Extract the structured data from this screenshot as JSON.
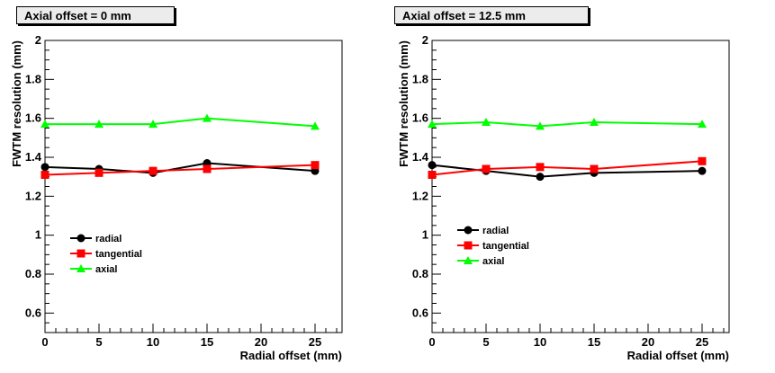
{
  "chart_data": [
    {
      "type": "line",
      "title": "Axial offset = 0 mm",
      "xlabel": "Radial offset (mm)",
      "ylabel": "FWTM resolution (mm)",
      "xlim": [
        0,
        27.5
      ],
      "ylim": [
        0.5,
        2.0
      ],
      "xticks": [
        0,
        5,
        10,
        15,
        20,
        25
      ],
      "xtick_labels": [
        "0",
        "5",
        "10",
        "15",
        "20",
        "25"
      ],
      "yticks": [
        0.6,
        0.8,
        1.0,
        1.2,
        1.4,
        1.6,
        1.8,
        2.0
      ],
      "ytick_labels": [
        "0.6",
        "0.8",
        "1",
        "1.2",
        "1.4",
        "1.6",
        "1.8",
        "2"
      ],
      "grid": false,
      "legend_position": "lower-left",
      "x": [
        0,
        5,
        10,
        15,
        25
      ],
      "series": [
        {
          "name": "radial",
          "color": "#000000",
          "marker": "circle",
          "values": [
            1.35,
            1.34,
            1.32,
            1.37,
            1.33
          ]
        },
        {
          "name": "tangential",
          "color": "#ff0000",
          "marker": "square",
          "values": [
            1.31,
            1.32,
            1.33,
            1.34,
            1.36
          ]
        },
        {
          "name": "axial",
          "color": "#00ff00",
          "marker": "triangle",
          "values": [
            1.57,
            1.57,
            1.57,
            1.6,
            1.56
          ]
        }
      ]
    },
    {
      "type": "line",
      "title": "Axial offset = 12.5 mm",
      "xlabel": "Radial offset (mm)",
      "ylabel": "FWTM resolution (mm)",
      "xlim": [
        0,
        27.5
      ],
      "ylim": [
        0.5,
        2.0
      ],
      "xticks": [
        0,
        5,
        10,
        15,
        20,
        25
      ],
      "xtick_labels": [
        "0",
        "5",
        "10",
        "15",
        "20",
        "25"
      ],
      "yticks": [
        0.6,
        0.8,
        1.0,
        1.2,
        1.4,
        1.6,
        1.8,
        2.0
      ],
      "ytick_labels": [
        "0.6",
        "0.8",
        "1",
        "1.2",
        "1.4",
        "1.6",
        "1.8",
        "2"
      ],
      "grid": false,
      "legend_position": "lower-left",
      "x": [
        0,
        5,
        10,
        15,
        25
      ],
      "series": [
        {
          "name": "radial",
          "color": "#000000",
          "marker": "circle",
          "values": [
            1.36,
            1.33,
            1.3,
            1.32,
            1.33
          ]
        },
        {
          "name": "tangential",
          "color": "#ff0000",
          "marker": "square",
          "values": [
            1.31,
            1.34,
            1.35,
            1.34,
            1.38
          ]
        },
        {
          "name": "axial",
          "color": "#00ff00",
          "marker": "triangle",
          "values": [
            1.57,
            1.58,
            1.56,
            1.58,
            1.57
          ]
        }
      ]
    }
  ]
}
